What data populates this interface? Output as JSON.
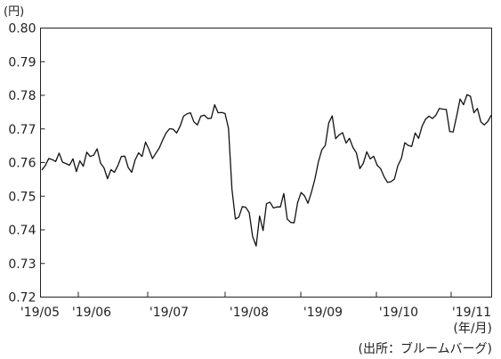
{
  "chart_data": {
    "type": "line",
    "ylabel": "(円)",
    "xlabel": "(年/月)",
    "source": "(出所：ブルームバーグ)",
    "ylim": [
      0.72,
      0.8
    ],
    "y_ticks": [
      "0.80",
      "0.79",
      "0.78",
      "0.77",
      "0.76",
      "0.75",
      "0.74",
      "0.73",
      "0.72"
    ],
    "x_tick_labels": [
      "'19/05",
      "'19/06",
      "'19/07",
      "'19/08",
      "'19/09",
      "'19/10",
      "'19/11"
    ],
    "grid": false,
    "series": [
      {
        "values": [
          0.7578,
          0.7591,
          0.7612,
          0.7609,
          0.7603,
          0.7628,
          0.7601,
          0.7597,
          0.7592,
          0.7611,
          0.7573,
          0.7605,
          0.7589,
          0.7631,
          0.7618,
          0.7622,
          0.7641,
          0.7598,
          0.7584,
          0.7552,
          0.7579,
          0.7571,
          0.7591,
          0.7618,
          0.7619,
          0.7585,
          0.7571,
          0.7608,
          0.7629,
          0.7618,
          0.7661,
          0.7639,
          0.7612,
          0.7628,
          0.7644,
          0.7668,
          0.7689,
          0.7701,
          0.7699,
          0.7688,
          0.7708,
          0.7738,
          0.7745,
          0.7748,
          0.7721,
          0.7712,
          0.7738,
          0.7741,
          0.7731,
          0.7732,
          0.7772,
          0.7748,
          0.7749,
          0.7746,
          0.7702,
          0.7521,
          0.7432,
          0.7438,
          0.7469,
          0.7467,
          0.7451,
          0.7379,
          0.7352,
          0.7441,
          0.7398,
          0.7478,
          0.7482,
          0.7465,
          0.7468,
          0.7468,
          0.7508,
          0.7432,
          0.7422,
          0.7421,
          0.7481,
          0.7511,
          0.7501,
          0.7479,
          0.7512,
          0.7551,
          0.7602,
          0.7638,
          0.7651,
          0.7718,
          0.7739,
          0.7671,
          0.7682,
          0.7689,
          0.7658,
          0.7672,
          0.7645,
          0.7629,
          0.7582,
          0.7598,
          0.7632,
          0.7611,
          0.7619,
          0.7592,
          0.7582,
          0.7558,
          0.7541,
          0.7543,
          0.7551,
          0.7591,
          0.7612,
          0.7659,
          0.7651,
          0.7648,
          0.7688,
          0.7672,
          0.7708,
          0.7729,
          0.7738,
          0.7731,
          0.7741,
          0.7761,
          0.7759,
          0.7758,
          0.7692,
          0.7691,
          0.7738,
          0.7789,
          0.7772,
          0.7802,
          0.7797,
          0.7748,
          0.7761,
          0.7721,
          0.7712,
          0.7722,
          0.7741
        ]
      }
    ]
  }
}
